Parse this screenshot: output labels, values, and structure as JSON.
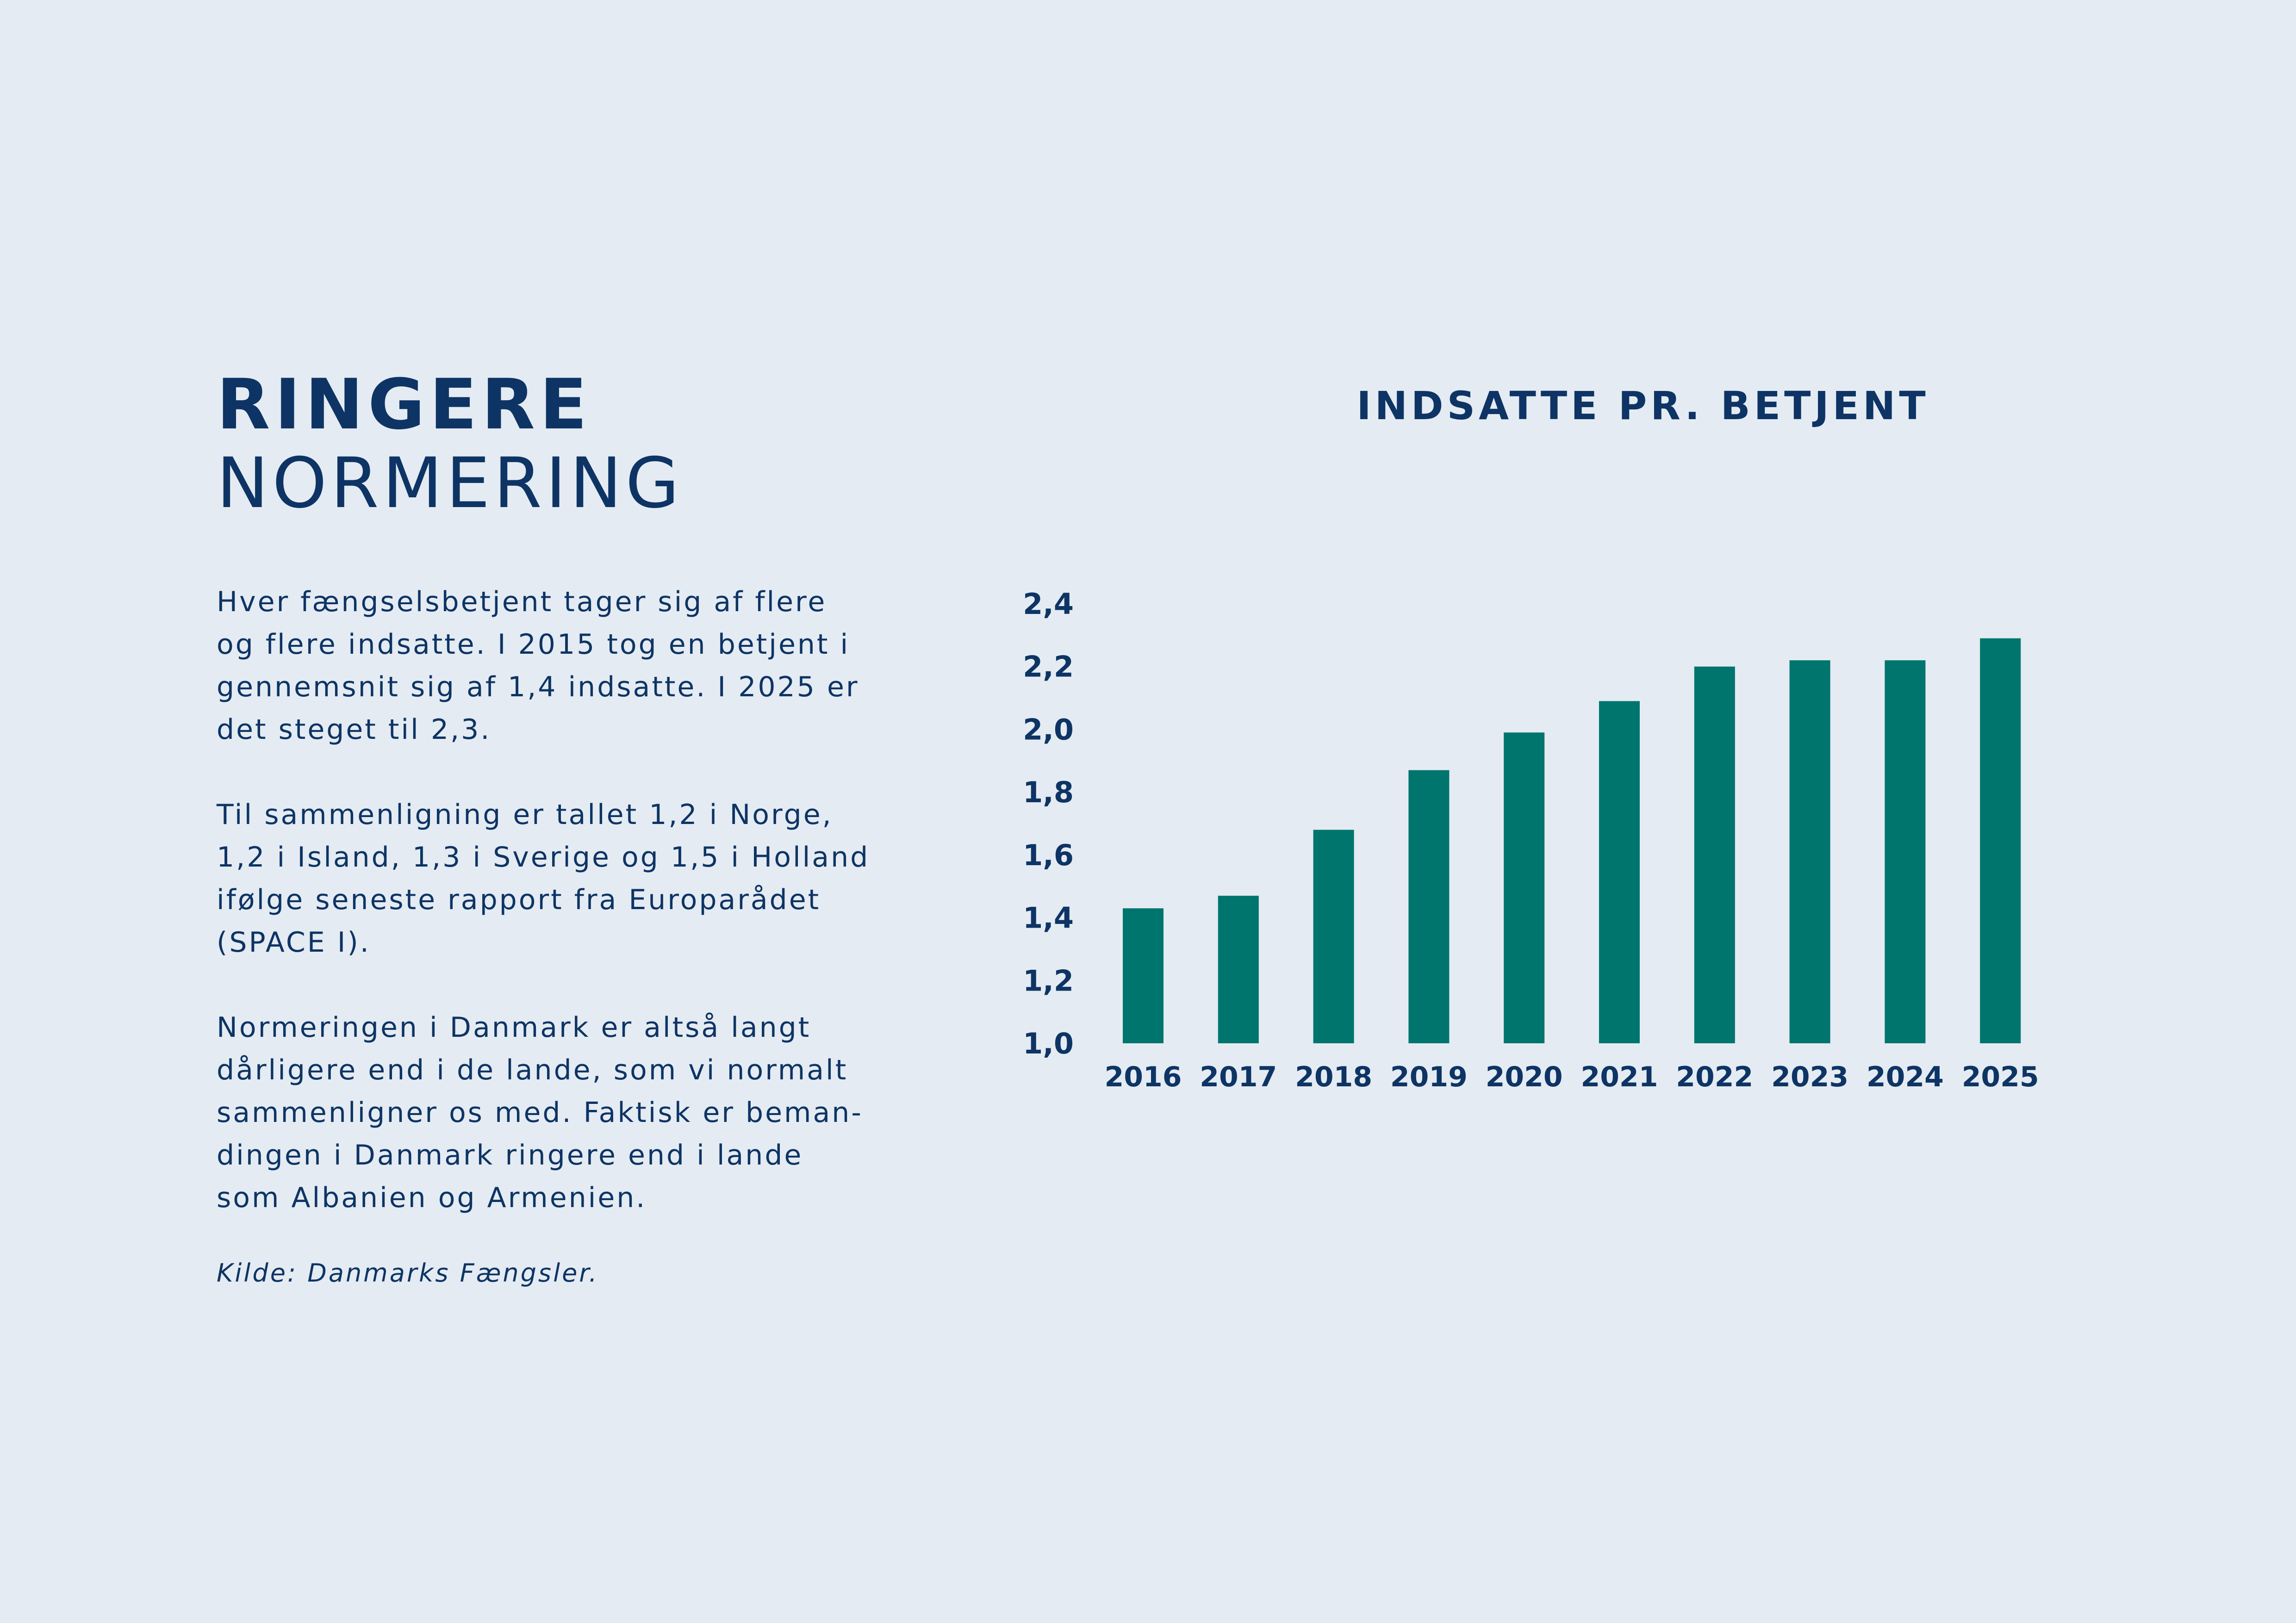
{
  "heading": {
    "line1": "RINGERE",
    "line2": "NORMERING"
  },
  "paragraphs": [
    "Hver fængselsbetjent tager sig af flere\nog flere indsatte. I 2015 tog en betjent i\ngennemsnit sig af 1,4 indsatte. I 2025 er\ndet steget til 2,3.",
    "Til sammenligning er tallet 1,2 i Norge,\n1,2 i Island, 1,3 i Sverige og 1,5 i Holland\nifølge seneste rapport fra Europarådet\n(SPACE I).",
    "Normeringen i Danmark er altså langt\ndårligere end i de lande, som vi normalt\nsammenligner os med. Faktisk er beman-\ndingen i Danmark ringere end i lande\nsom Albanien og Armenien."
  ],
  "source": "Kilde: Danmarks Fængsler.",
  "colors": {
    "background": "#e4ebf2",
    "text": "#0d3464",
    "bar": "#00756e"
  },
  "chart_data": {
    "type": "bar",
    "title": "INDSATTE PR. BETJENT",
    "xlabel": "",
    "ylabel": "",
    "categories": [
      "2016",
      "2017",
      "2018",
      "2019",
      "2020",
      "2021",
      "2022",
      "2023",
      "2024",
      "2025"
    ],
    "values": [
      1.43,
      1.47,
      1.68,
      1.87,
      1.99,
      2.09,
      2.2,
      2.22,
      2.22,
      2.29
    ],
    "ylim": [
      1.0,
      2.4
    ],
    "yticks": [
      1.0,
      1.2,
      1.4,
      1.6,
      1.8,
      2.0,
      2.2,
      2.4
    ],
    "ytick_labels": [
      "1,0",
      "1,2",
      "1,4",
      "1,6",
      "1,8",
      "2,0",
      "2,2",
      "2,4"
    ],
    "grid": false,
    "legend": "none"
  }
}
